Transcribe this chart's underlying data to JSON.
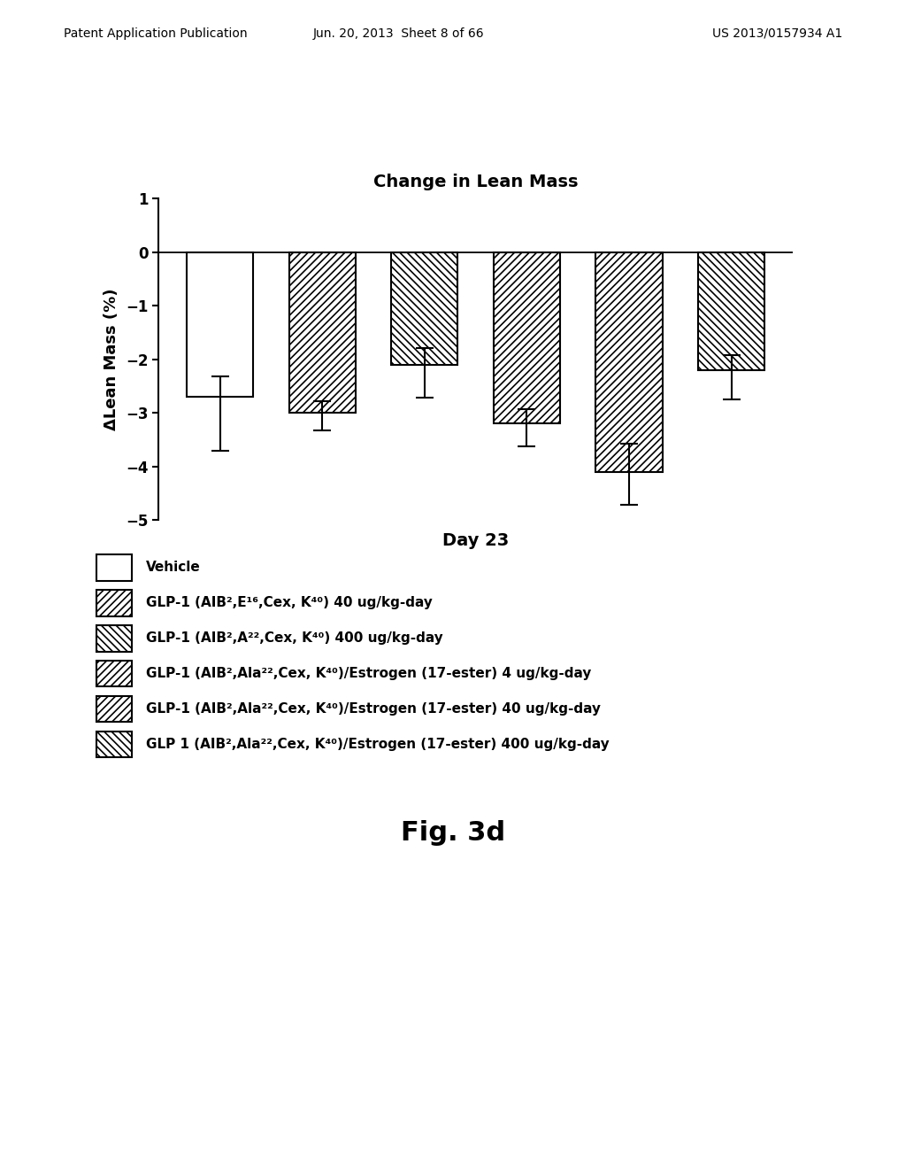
{
  "title": "Change in Lean Mass",
  "xlabel": "Day 23",
  "ylabel": "ΔLean Mass (%)",
  "ylim": [
    -5,
    1
  ],
  "yticks": [
    -5,
    -4,
    -3,
    -2,
    -1,
    0,
    1
  ],
  "bar_values": [
    -2.7,
    -3.0,
    -2.1,
    -3.2,
    -4.1,
    -2.2
  ],
  "bar_errors_low": [
    1.0,
    0.32,
    0.62,
    0.42,
    0.62,
    0.55
  ],
  "bar_errors_high": [
    0.38,
    0.22,
    0.32,
    0.28,
    0.52,
    0.28
  ],
  "bar_positions": [
    1,
    2,
    3,
    4,
    5,
    6
  ],
  "bar_width": 0.65,
  "background_color": "#ffffff",
  "header_left": "Patent Application Publication",
  "header_center": "Jun. 20, 2013  Sheet 8 of 66",
  "header_right": "US 2013/0157934 A1",
  "fig_caption": "Fig. 3d",
  "legend_labels": [
    "Vehicle",
    "GLP-1 (AIB²,E¹⁶,Cex, K⁴⁰) 40 ug/kg-day",
    "GLP-1 (AIB²,A²²,Cex, K⁴⁰) 400 ug/kg-day",
    "GLP-1 (AIB²,Ala²²,Cex, K⁴⁰)/Estrogen (17-ester) 4 ug/kg-day",
    "GLP-1 (AIB²,Ala²²,Cex, K⁴⁰)/Estrogen (17-ester) 40 ug/kg-day",
    "GLP 1 (AIB²,Ala²²,Cex, K⁴⁰)/Estrogen (17-ester) 400 ug/kg-day"
  ],
  "legend_hatches": [
    "",
    "////",
    "\\\\\\\\",
    "........////",
    "....////",
    "\\\\\\\\"
  ],
  "hatch_linewidth": 1.2
}
